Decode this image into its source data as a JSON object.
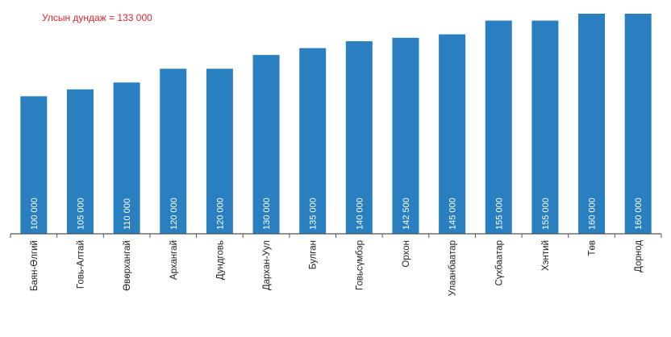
{
  "annotation": "Улсын дундаж = 133 000",
  "colors": {
    "bar": "#2a7fc0",
    "annotation": "#e0262b",
    "axis": "#555555"
  },
  "chart_data": {
    "type": "bar",
    "title": "",
    "xlabel": "",
    "ylabel": "",
    "grid": false,
    "legend": "none",
    "categories": [
      "Баян-Өлгий",
      "Говь-Алтай",
      "Өвөрхангай",
      "Архангай",
      "Дундговь",
      "Дархан-Уул",
      "Булган",
      "Говьсүмбэр",
      "Орхон",
      "Улаанбаатар",
      "Сүхбаатар",
      "Хэнтий",
      "Төв",
      "Дорнод"
    ],
    "values": [
      100000,
      105000,
      110000,
      120000,
      120000,
      130000,
      135000,
      140000,
      142500,
      145000,
      155000,
      155000,
      160000,
      160000
    ],
    "data_labels": [
      "100 000",
      "105 000",
      "110 000",
      "120 000",
      "120 000",
      "130 000",
      "135 000",
      "140 000",
      "142 500",
      "145 000",
      "155 000",
      "155 000",
      "160 000",
      "160 000"
    ],
    "ylim": [
      0,
      160000
    ]
  }
}
